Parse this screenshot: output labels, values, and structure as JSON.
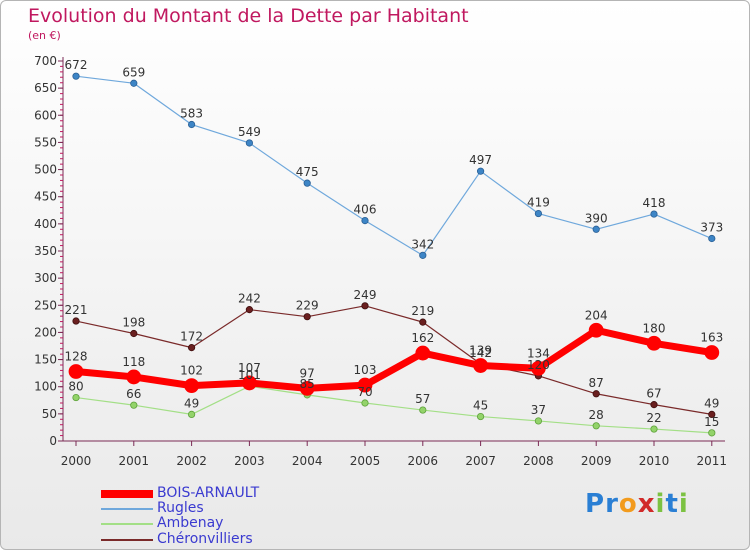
{
  "title": "Evolution du Montant de la Dette par Habitant",
  "subtitle": "(en €)",
  "logo": {
    "text": "Proxiti",
    "letters": [
      "P",
      "r",
      "o",
      "x",
      "i",
      "t",
      "i"
    ],
    "colors": [
      "#2a7fd4",
      "#2a7fd4",
      "#f29b1d",
      "#d12a2a",
      "#7cc242",
      "#2a7fd4",
      "#7cc242"
    ]
  },
  "chart_data": {
    "type": "line",
    "title": "Evolution du Montant de la Dette par Habitant",
    "subtitle": "(en €)",
    "xlabel": "",
    "ylabel": "",
    "ylim": [
      0,
      700
    ],
    "yticks": [
      0,
      50,
      100,
      150,
      200,
      250,
      300,
      350,
      400,
      450,
      500,
      550,
      600,
      650,
      700
    ],
    "categories": [
      "2000",
      "2001",
      "2002",
      "2003",
      "2004",
      "2005",
      "2006",
      "2007",
      "2008",
      "2009",
      "2010",
      "2011"
    ],
    "grid": false,
    "legend": "bottom-left",
    "series": [
      {
        "name": "BOIS-ARNAULT",
        "color": "#ff0000",
        "values": [
          128,
          118,
          102,
          107,
          97,
          103,
          162,
          139,
          134,
          204,
          180,
          163
        ],
        "labels": [
          "128",
          "118",
          "102",
          "107",
          "97",
          "103",
          "162",
          "139",
          "134",
          "204",
          "180",
          "163"
        ]
      },
      {
        "name": "Rugles",
        "color": "#6fa8dc",
        "values": [
          672,
          659,
          583,
          549,
          475,
          406,
          342,
          497,
          419,
          390,
          418,
          373
        ],
        "labels": [
          "672",
          "659",
          "583",
          "549",
          "475",
          "406",
          "342",
          "497",
          "419",
          "390",
          "418",
          "373"
        ]
      },
      {
        "name": "Ambenay",
        "color": "#a3df86",
        "values": [
          80,
          66,
          49,
          101,
          85,
          70,
          57,
          45,
          37,
          28,
          22,
          15
        ],
        "labels": [
          "80",
          "66",
          "49",
          "101",
          "85",
          "70",
          "57",
          "45",
          "37",
          "28",
          "22",
          "15"
        ]
      },
      {
        "name": "Chéronvilliers",
        "color": "#7a2a2a",
        "values": [
          221,
          198,
          172,
          242,
          229,
          249,
          219,
          142,
          120,
          87,
          67,
          49
        ],
        "labels": [
          "221",
          "198",
          "172",
          "242",
          "229",
          "249",
          "219",
          "142",
          "120",
          "87",
          "67",
          "49"
        ]
      }
    ]
  }
}
